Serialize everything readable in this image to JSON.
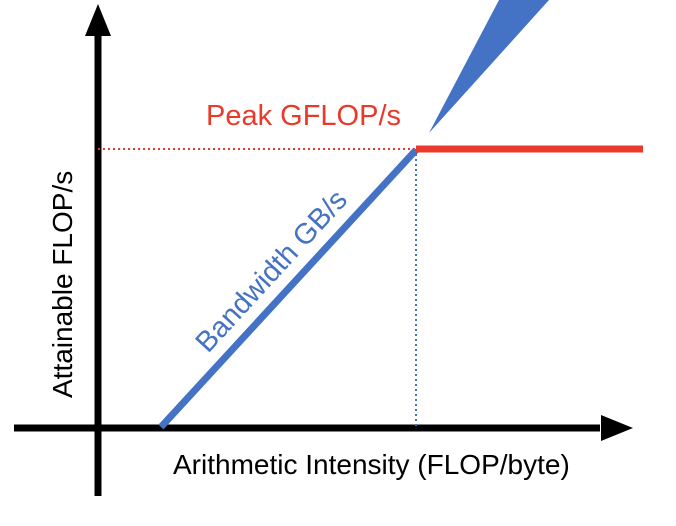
{
  "diagram": {
    "peak_label": "Peak GFLOP/s",
    "bandwidth_label": "Bandwidth GB/s",
    "x_axis_label": "Arithmetic Intensity (FLOP/byte)",
    "y_axis_label": "Attainable FLOP/s",
    "colors": {
      "peak": "#e8392b",
      "bandwidth": "#4472c4",
      "axis": "#000000",
      "pointer": "#4472c4"
    }
  }
}
